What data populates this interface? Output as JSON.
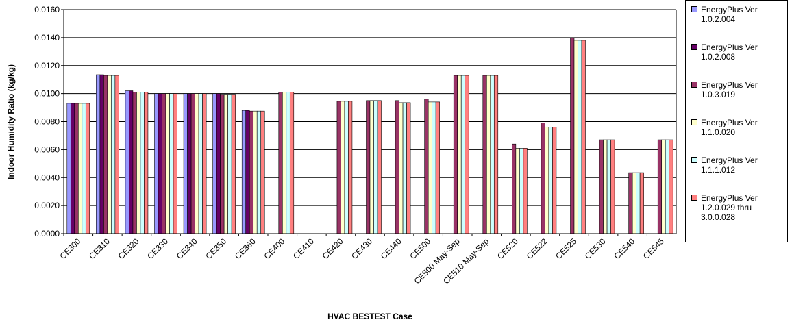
{
  "chart_data": {
    "type": "bar",
    "x_label": "HVAC BESTEST Case",
    "y_label": "Indoor Humidity Ratio (kg/kg)",
    "categories": [
      "CE300",
      "CE310",
      "CE320",
      "CE330",
      "CE340",
      "CE350",
      "CE360",
      "CE400",
      "CE410",
      "CE420",
      "CE430",
      "CE440",
      "CE500",
      "CE500 May-Sep",
      "CE510 May-Sep",
      "CE520",
      "CE522",
      "CE525",
      "CE530",
      "CE540",
      "CE545"
    ],
    "series": [
      {
        "name": "EnergyPlus Ver 1.0.2.004",
        "color": "#9999ff",
        "values": [
          0.0093,
          0.01135,
          0.0102,
          0.01,
          0.01,
          0.01,
          0.0088,
          null,
          null,
          null,
          null,
          null,
          null,
          null,
          null,
          null,
          null,
          null,
          null,
          null,
          null
        ]
      },
      {
        "name": "EnergyPlus Ver 1.0.2.008",
        "color": "#660066",
        "values": [
          0.0093,
          0.01135,
          0.0102,
          0.01,
          0.01,
          0.01,
          0.0088,
          null,
          null,
          null,
          null,
          null,
          null,
          null,
          null,
          null,
          null,
          null,
          null,
          null,
          null
        ]
      },
      {
        "name": "EnergyPlus Ver 1.0.3.019",
        "color": "#993366",
        "values": [
          0.0093,
          0.0113,
          0.0101,
          0.01,
          0.01,
          0.00995,
          0.00875,
          0.0101,
          null,
          0.00945,
          0.0095,
          0.0095,
          0.0096,
          0.0113,
          0.0113,
          0.0064,
          0.0079,
          0.014,
          0.0067,
          0.00435,
          0.0067
        ]
      },
      {
        "name": "EnergyPlus Ver 1.1.0.020",
        "color": "#ffffcc",
        "values": [
          0.0093,
          0.0113,
          0.0101,
          0.01,
          0.01,
          0.00995,
          0.00875,
          0.0101,
          null,
          0.00945,
          0.0095,
          0.00935,
          0.0094,
          0.0113,
          0.0113,
          0.0061,
          0.0076,
          0.0138,
          0.0067,
          0.00435,
          0.0067
        ]
      },
      {
        "name": "EnergyPlus Ver 1.1.1.012",
        "color": "#ccffff",
        "values": [
          0.0093,
          0.0113,
          0.0101,
          0.01,
          0.01,
          0.00995,
          0.00875,
          0.0101,
          null,
          0.00945,
          0.0095,
          0.00935,
          0.0094,
          0.0113,
          0.0113,
          0.0061,
          0.0076,
          0.0138,
          0.0067,
          0.00435,
          0.0067
        ]
      },
      {
        "name": "EnergyPlus Ver 1.2.0.029 thru 3.0.0.028",
        "color": "#ff8080",
        "values": [
          0.0093,
          0.0113,
          0.0101,
          0.01,
          0.01,
          0.00995,
          0.00875,
          0.0101,
          null,
          0.00945,
          0.0095,
          0.00935,
          0.0094,
          0.0113,
          0.0113,
          0.0061,
          0.0076,
          0.0138,
          0.0067,
          0.00435,
          0.0067
        ]
      }
    ],
    "ylim": [
      0,
      0.016
    ],
    "yticks": [
      {
        "value": 0,
        "label": "0.0000"
      },
      {
        "value": 0.002,
        "label": "0.0020"
      },
      {
        "value": 0.004,
        "label": "0.0040"
      },
      {
        "value": 0.006,
        "label": "0.0060"
      },
      {
        "value": 0.008,
        "label": "0.0080"
      },
      {
        "value": 0.01,
        "label": "0.0100"
      },
      {
        "value": 0.012,
        "label": "0.0120"
      },
      {
        "value": 0.014,
        "label": "0.0140"
      },
      {
        "value": 0.016,
        "label": "0.0160"
      }
    ],
    "grid": true,
    "legend": "right"
  }
}
